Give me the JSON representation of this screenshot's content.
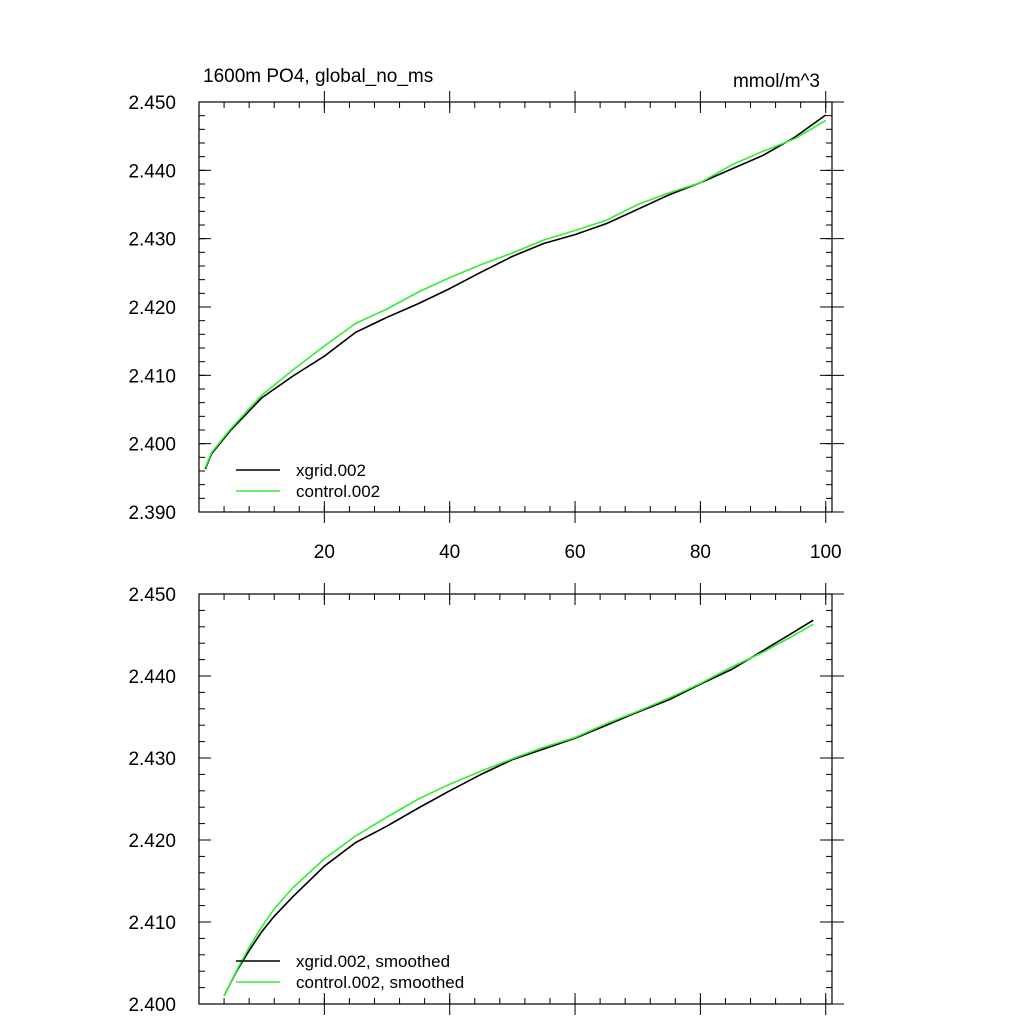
{
  "chart_data": [
    {
      "type": "line",
      "title_left": "1600m PO4, global_no_ms",
      "title_right": "mmol/m^3",
      "xlabel": "",
      "ylabel": "",
      "xlim": [
        0,
        101
      ],
      "ylim": [
        2.39,
        2.45
      ],
      "xticks": [
        20,
        40,
        60,
        80,
        100
      ],
      "yticks": [
        2.39,
        2.4,
        2.41,
        2.42,
        2.43,
        2.44,
        2.45
      ],
      "ytick_labels": [
        "2.390",
        "2.400",
        "2.410",
        "2.420",
        "2.430",
        "2.440",
        "2.450"
      ],
      "xtick_labels": [
        "20",
        "40",
        "60",
        "80",
        "100"
      ],
      "legend_position": "bottom-left",
      "series": [
        {
          "name": "xgrid.002",
          "color": "#000000",
          "x": [
            1,
            2,
            5,
            10,
            15,
            20,
            25,
            30,
            35,
            40,
            45,
            50,
            55,
            60,
            65,
            70,
            75,
            80,
            85,
            90,
            95,
            100
          ],
          "values": [
            2.3963,
            2.3985,
            2.4019,
            2.4067,
            2.4099,
            2.4128,
            2.4163,
            2.4185,
            2.4205,
            2.4227,
            2.4251,
            2.4274,
            2.4293,
            2.4306,
            2.4322,
            2.4343,
            2.4364,
            2.4382,
            2.4402,
            2.4422,
            2.4448,
            2.4481
          ]
        },
        {
          "name": "control.002",
          "color": "#33ee33",
          "x": [
            1,
            2,
            5,
            10,
            15,
            20,
            25,
            30,
            35,
            40,
            45,
            50,
            55,
            60,
            65,
            70,
            75,
            80,
            85,
            90,
            95,
            100
          ],
          "values": [
            2.3965,
            2.3987,
            2.4021,
            2.4071,
            2.4108,
            2.4143,
            2.4176,
            2.4197,
            2.4222,
            2.4243,
            2.4262,
            2.4279,
            2.4298,
            2.4312,
            2.4327,
            2.435,
            2.4367,
            2.4382,
            2.4408,
            2.4428,
            2.4446,
            2.4473
          ]
        }
      ]
    },
    {
      "type": "line",
      "xlim": [
        0,
        101
      ],
      "ylim": [
        2.4,
        2.45
      ],
      "yticks": [
        2.4,
        2.41,
        2.42,
        2.43,
        2.44,
        2.45
      ],
      "ytick_labels": [
        "2.400",
        "2.410",
        "2.420",
        "2.430",
        "2.440",
        "2.450"
      ],
      "xticks": [
        20,
        40,
        60,
        80,
        100
      ],
      "legend_position": "bottom-left",
      "series": [
        {
          "name": "xgrid.002, smoothed",
          "color": "#000000",
          "x": [
            4,
            6,
            8,
            10,
            12,
            15,
            20,
            25,
            30,
            35,
            40,
            45,
            50,
            55,
            60,
            65,
            70,
            75,
            80,
            85,
            90,
            95,
            98
          ],
          "values": [
            2.401,
            2.404,
            2.4065,
            2.4088,
            2.4107,
            2.4131,
            2.4168,
            2.4197,
            2.4217,
            2.4239,
            2.426,
            2.428,
            2.4298,
            2.4311,
            2.4324,
            2.434,
            2.4356,
            2.4371,
            2.439,
            2.4408,
            2.4431,
            2.4454,
            2.4468
          ]
        },
        {
          "name": "control.002, smoothed",
          "color": "#33ee33",
          "x": [
            4,
            6,
            8,
            10,
            12,
            15,
            20,
            25,
            30,
            35,
            40,
            45,
            50,
            55,
            60,
            65,
            70,
            75,
            80,
            85,
            90,
            95,
            98
          ],
          "values": [
            2.401,
            2.4041,
            2.4069,
            2.4094,
            2.4116,
            2.4142,
            2.4177,
            2.4205,
            2.4228,
            2.425,
            2.4268,
            2.4284,
            2.4299,
            2.4313,
            2.4325,
            2.4342,
            2.4357,
            2.4373,
            2.4391,
            2.4411,
            2.4429,
            2.445,
            2.4463
          ]
        }
      ]
    }
  ]
}
